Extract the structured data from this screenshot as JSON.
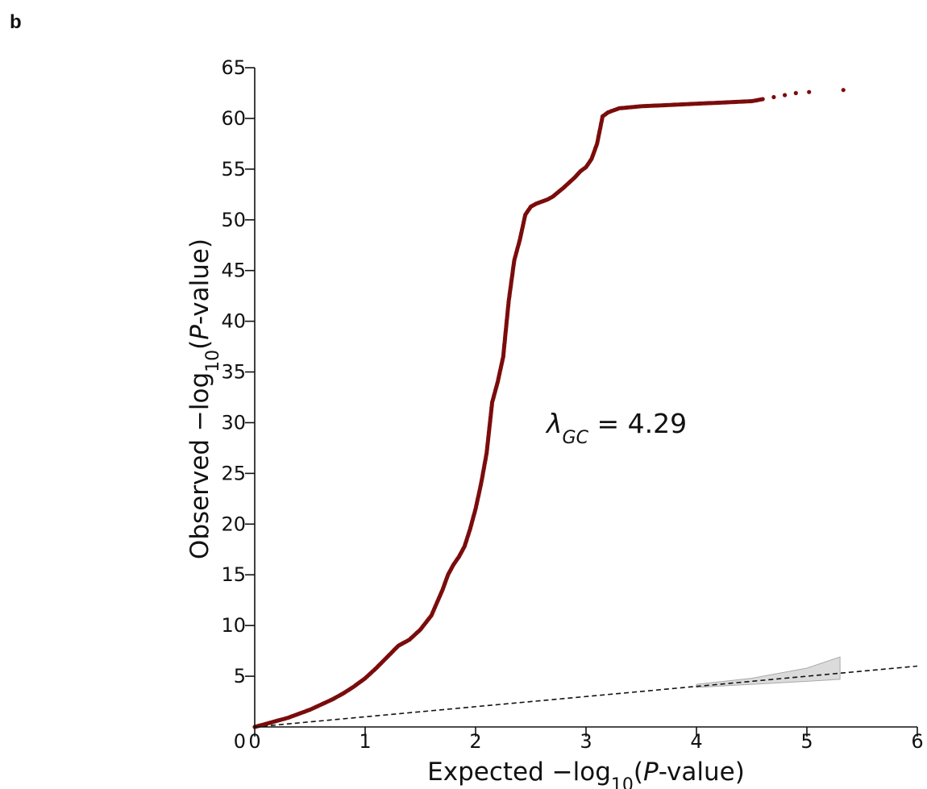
{
  "panel_label": "b",
  "colors": {
    "points": "#7b0c0c",
    "diagonal": "#111111",
    "band": "#cfcfcf"
  },
  "chart_data": {
    "type": "scatter",
    "xlabel": {
      "prefix": "Expected −log",
      "sub": "10",
      "open": "(",
      "italic": "P",
      "suffix": "-value)"
    },
    "ylabel": {
      "prefix": "Observed  −log",
      "sub": "10",
      "open": "(",
      "italic": "P",
      "suffix": "-value)"
    },
    "xlim": [
      0,
      6
    ],
    "ylim": [
      0,
      65
    ],
    "xticks": [
      0,
      1,
      2,
      3,
      4,
      5,
      6
    ],
    "yticks": [
      5,
      10,
      15,
      20,
      25,
      30,
      35,
      40,
      45,
      50,
      55,
      60,
      65
    ],
    "annotation": {
      "symbol": "λ",
      "sub": "GC",
      "text": " = 4.29"
    },
    "reference_line": {
      "slope": 1,
      "style": "dashed"
    },
    "confidence_band": {
      "x": [
        4.0,
        4.5,
        5.0,
        5.3
      ],
      "lower": [
        3.9,
        4.2,
        4.5,
        4.7
      ],
      "upper": [
        4.2,
        4.8,
        5.8,
        6.9
      ]
    },
    "series": [
      {
        "x": [
          0,
          0.1,
          0.2,
          0.3,
          0.4,
          0.5,
          0.6,
          0.7,
          0.8,
          0.9,
          1.0,
          1.1,
          1.2,
          1.3,
          1.4,
          1.5,
          1.6,
          1.7,
          1.75,
          1.8,
          1.85,
          1.9,
          1.95,
          2.0,
          2.05,
          2.1,
          2.15,
          2.2,
          2.25,
          2.3,
          2.35,
          2.4,
          2.45,
          2.5,
          2.55,
          2.6,
          2.65,
          2.7,
          2.8,
          2.9,
          2.95,
          3.0,
          3.05,
          3.1,
          3.15,
          3.2,
          3.3,
          3.5,
          3.7,
          3.9,
          4.1,
          4.3,
          4.5,
          4.6,
          4.7,
          4.8,
          4.9,
          5.02,
          5.33
        ],
        "y": [
          0,
          0.3,
          0.6,
          0.9,
          1.3,
          1.7,
          2.2,
          2.7,
          3.3,
          4.0,
          4.8,
          5.8,
          6.9,
          8.0,
          8.6,
          9.6,
          11.0,
          13.5,
          15.0,
          16.0,
          16.8,
          17.8,
          19.5,
          21.5,
          24.0,
          27.0,
          32.0,
          34.0,
          36.5,
          42.0,
          46.0,
          48.0,
          50.5,
          51.3,
          51.6,
          51.8,
          52.0,
          52.3,
          53.2,
          54.2,
          54.8,
          55.2,
          56.0,
          57.5,
          60.2,
          60.6,
          61.0,
          61.2,
          61.3,
          61.4,
          61.5,
          61.6,
          61.7,
          61.9,
          62.1,
          62.3,
          62.5,
          62.6,
          62.8
        ]
      }
    ]
  }
}
